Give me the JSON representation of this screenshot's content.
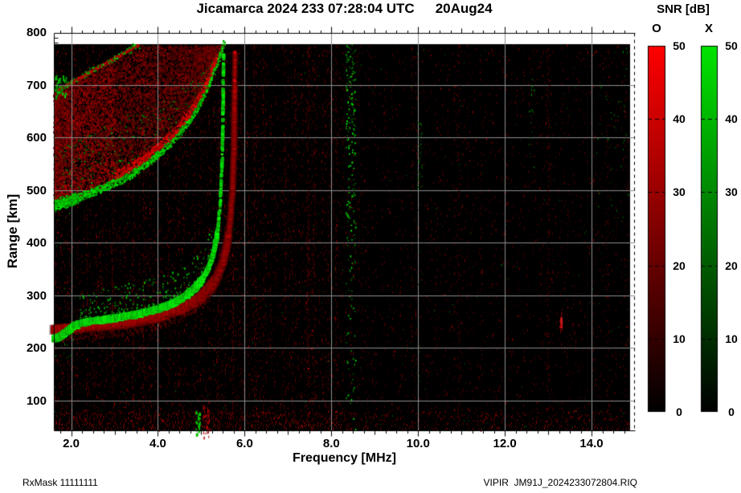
{
  "title": {
    "left": "Jicamarca 2024 233 07:28:04 UTC",
    "right": "20Aug24"
  },
  "footer": {
    "left": "RxMask 11111111",
    "right": "VIPIR  JM91J_2024233072804.RIQ"
  },
  "colorbar": {
    "title": "SNR [dB]",
    "o_label": "O",
    "x_label": "X",
    "min": 0,
    "max": 50,
    "ticks": [
      50,
      40,
      30,
      20,
      10,
      0
    ],
    "o_color": "#ff0000",
    "x_color": "#00e400",
    "background": "#000000"
  },
  "chart_data": {
    "type": "heatmap",
    "title": "Jicamarca 2024 233 07:28:04 UTC 20Aug24",
    "xlabel": "Frequency [MHz]",
    "ylabel": "Range [km]",
    "xlim": [
      1.6,
      15.0
    ],
    "ylim": [
      40,
      800
    ],
    "grid": true,
    "grid_color": "#8c8c8c",
    "background_color": "#000000",
    "xticks": [
      2,
      4,
      6,
      8,
      10,
      12,
      14
    ],
    "xtick_labels": [
      "2.0",
      "4.0",
      "6.0",
      "8.0",
      "10.0",
      "12.0",
      "14.0"
    ],
    "yticks": [
      800,
      700,
      600,
      500,
      400,
      300,
      200,
      100
    ],
    "ytick_labels": [
      "800",
      "700",
      "600",
      "500",
      "400",
      "300",
      "200",
      "100"
    ],
    "series": [
      {
        "name": "O-mode F-trace",
        "color": "#e00000",
        "points": [
          [
            1.6,
            236
          ],
          [
            2.0,
            238
          ],
          [
            2.5,
            241
          ],
          [
            3.0,
            245
          ],
          [
            3.5,
            251
          ],
          [
            4.0,
            260
          ],
          [
            4.5,
            274
          ],
          [
            4.8,
            286
          ],
          [
            5.0,
            298
          ],
          [
            5.2,
            315
          ],
          [
            5.35,
            334
          ],
          [
            5.5,
            364
          ],
          [
            5.6,
            400
          ],
          [
            5.67,
            444
          ],
          [
            5.72,
            500
          ],
          [
            5.755,
            580
          ],
          [
            5.77,
            668
          ],
          [
            5.78,
            762
          ]
        ]
      },
      {
        "name": "X-mode F-trace",
        "color": "#14cc10",
        "points": [
          [
            1.6,
            218
          ],
          [
            1.75,
            222
          ],
          [
            1.9,
            231
          ],
          [
            2.1,
            244
          ],
          [
            2.4,
            250
          ],
          [
            3.0,
            257
          ],
          [
            3.5,
            264
          ],
          [
            4.0,
            274
          ],
          [
            4.3,
            283
          ],
          [
            4.6,
            296
          ],
          [
            4.85,
            313
          ],
          [
            5.0,
            328
          ],
          [
            5.15,
            348
          ],
          [
            5.27,
            375
          ],
          [
            5.37,
            415
          ],
          [
            5.44,
            475
          ],
          [
            5.48,
            555
          ],
          [
            5.5,
            635
          ],
          [
            5.51,
            715
          ],
          [
            5.515,
            762
          ]
        ]
      },
      {
        "name": "spread-F lower boundary (green scatter)",
        "color": "#22bb22",
        "points": [
          [
            1.6,
            472
          ],
          [
            2.0,
            482
          ],
          [
            2.7,
            504
          ],
          [
            3.3,
            527
          ],
          [
            3.9,
            562
          ],
          [
            4.4,
            600
          ],
          [
            4.75,
            637
          ],
          [
            5.05,
            680
          ],
          [
            5.25,
            720
          ],
          [
            5.4,
            752
          ],
          [
            5.5,
            778
          ]
        ]
      },
      {
        "name": "spread-F top streak",
        "color": "#cc2222",
        "points": [
          [
            1.66,
            690
          ],
          [
            3.56,
            778
          ]
        ]
      }
    ],
    "rfi_stripes": [
      {
        "freq": 8.45,
        "color": "green",
        "density": "high"
      },
      {
        "freq": 10.06,
        "color": "green",
        "density": "low"
      },
      {
        "freq": 12.62,
        "color": "green",
        "density": "sparse"
      },
      {
        "freq": 14.35,
        "color": "green",
        "density": "sparse"
      },
      {
        "freq": 7.45,
        "color": "red",
        "density": "low"
      },
      {
        "freq": 11.0,
        "color": "red",
        "density": "low"
      },
      {
        "freq": 13.05,
        "color": "red",
        "density": "low"
      },
      {
        "freq": 14.0,
        "color": "red",
        "density": "sparse"
      }
    ],
    "features": [
      {
        "name": "echo blob",
        "freq": 13.29,
        "range": 235,
        "color": "red"
      },
      {
        "name": "low-range green spur",
        "freq": 4.9,
        "range": 60,
        "color": "green"
      },
      {
        "name": "low-range red spur",
        "freq": 5.12,
        "range": 60,
        "color": "red"
      }
    ]
  }
}
